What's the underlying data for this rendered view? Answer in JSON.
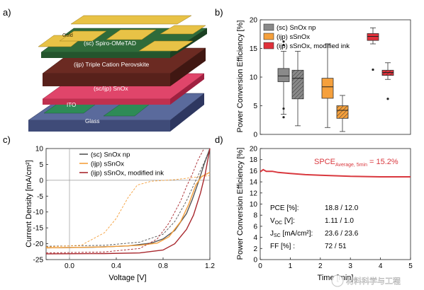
{
  "panel_a": {
    "label": "a)",
    "layers": {
      "gold": "Gold",
      "htl": "(sc) Spiro-OMeTAD",
      "perovskite": "(ijp) Triple Cation Perovskite",
      "etl": "(sc/ijp) SnOx",
      "ito": "ITO",
      "glass": "Glass"
    },
    "colors": {
      "gold": "#e8c246",
      "htl": "#2f6b3a",
      "perovskite": "#6b2a22",
      "etl": "#e0456a",
      "ito": "#2e8b57",
      "glass": "#5a6a9c"
    }
  },
  "panel_b": {
    "label": "b)"
  },
  "panel_c": {
    "label": "c)"
  },
  "panel_d": {
    "label": "d)",
    "annotation": "SPCE",
    "annotation_sub": "Average, 5min",
    "annotation_value": " = 15.2%",
    "params": [
      {
        "label": "PCE [%]:",
        "value": "18.8 / 12.0"
      },
      {
        "label": "V",
        "sub": "OC",
        "unit": " [V]:",
        "value": "1.11 / 1.0"
      },
      {
        "label": "J",
        "sub": "SC",
        "unit": " [mA/cm²]:",
        "value": "23.6 / 23.6"
      },
      {
        "label": "FF [%]  :",
        "value": "72 / 51"
      }
    ]
  },
  "watermark": "材料科学与工程",
  "chart_data": [
    {
      "type": "box",
      "ylabel": "Power Conversion Efficiency [%]",
      "ylim": [
        0,
        20
      ],
      "yticks": [
        0,
        5,
        10,
        15,
        20
      ],
      "legend": [
        {
          "name": "(sc) SnOx np",
          "color": "#8a8a8a"
        },
        {
          "name": "(ijp) sSnOx",
          "color": "#f5a03c"
        },
        {
          "name": "(ijp) sSnOx, modified ink",
          "color": "#e0303a"
        }
      ],
      "boxes": [
        {
          "color": "#8a8a8a",
          "hatched": false,
          "min": 3.5,
          "q1": 9.2,
          "median": 10.2,
          "q3": 11.5,
          "max": 14.5,
          "outliers": [
            16.2,
            15.6,
            4.5,
            3.0
          ]
        },
        {
          "color": "#8a8a8a",
          "hatched": true,
          "min": 1.5,
          "q1": 6.2,
          "median": 9.8,
          "q3": 11.2,
          "max": 14.5,
          "outliers": []
        },
        {
          "color": "#f5a03c",
          "hatched": false,
          "min": 1.2,
          "q1": 6.3,
          "median": 8.3,
          "q3": 9.8,
          "max": 15.8,
          "outliers": []
        },
        {
          "color": "#f5a03c",
          "hatched": true,
          "min": 0.5,
          "q1": 2.8,
          "median": 4.2,
          "q3": 5.0,
          "max": 6.8,
          "outliers": []
        },
        {
          "color": "#e0303a",
          "hatched": false,
          "min": 15.8,
          "q1": 16.4,
          "median": 17.1,
          "q3": 17.6,
          "max": 18.6,
          "outliers": [
            11.3
          ]
        },
        {
          "color": "#e0303a",
          "hatched": true,
          "min": 9.6,
          "q1": 10.3,
          "median": 10.8,
          "q3": 11.2,
          "max": 12.5,
          "outliers": [
            6.2
          ]
        }
      ]
    },
    {
      "type": "line",
      "xlabel": "Voltage [V]",
      "ylabel": "Current Density [mA/cm²]",
      "xlim": [
        -0.2,
        1.2
      ],
      "ylim": [
        -25,
        10
      ],
      "xticks": [
        0.0,
        0.4,
        0.8,
        1.2
      ],
      "yticks": [
        -25,
        -20,
        -15,
        -10,
        -5,
        0,
        5,
        10
      ],
      "legend": [
        {
          "name": "(sc) SnOx np",
          "color": "#555555"
        },
        {
          "name": "(ijp) sSnOx",
          "color": "#f5a03c"
        },
        {
          "name": "(ijp) sSnOx, modified ink",
          "color": "#a8282e"
        }
      ],
      "series": [
        {
          "color": "#555555",
          "dashed": false,
          "points": [
            [
              -0.2,
              -21.3
            ],
            [
              0.2,
              -21.1
            ],
            [
              0.5,
              -20.7
            ],
            [
              0.7,
              -19.8
            ],
            [
              0.8,
              -18.5
            ],
            [
              0.9,
              -15.8
            ],
            [
              1.0,
              -10.5
            ],
            [
              1.05,
              -6.0
            ],
            [
              1.1,
              -0.8
            ],
            [
              1.15,
              5.0
            ],
            [
              1.2,
              11.0
            ]
          ]
        },
        {
          "color": "#555555",
          "dashed": true,
          "points": [
            [
              -0.2,
              -20.8
            ],
            [
              0.3,
              -20.5
            ],
            [
              0.6,
              -19.5
            ],
            [
              0.8,
              -17.0
            ],
            [
              0.9,
              -13.0
            ],
            [
              1.0,
              -6.5
            ],
            [
              1.08,
              0.0
            ],
            [
              1.15,
              5.5
            ],
            [
              1.2,
              10.0
            ]
          ]
        },
        {
          "color": "#f5a03c",
          "dashed": false,
          "points": [
            [
              -0.2,
              -21.3
            ],
            [
              0.3,
              -21.0
            ],
            [
              0.6,
              -20.5
            ],
            [
              0.75,
              -19.8
            ],
            [
              0.85,
              -17.8
            ],
            [
              0.95,
              -13.0
            ],
            [
              1.02,
              -7.5
            ],
            [
              1.08,
              -1.5
            ],
            [
              1.13,
              1.2
            ],
            [
              1.2,
              2.5
            ]
          ]
        },
        {
          "color": "#f5a03c",
          "dashed": true,
          "points": [
            [
              -0.2,
              -21.0
            ],
            [
              0.1,
              -20.5
            ],
            [
              0.3,
              -16.5
            ],
            [
              0.4,
              -12.0
            ],
            [
              0.5,
              -5.5
            ],
            [
              0.58,
              -1.5
            ],
            [
              0.7,
              -0.3
            ],
            [
              0.9,
              0.2
            ],
            [
              1.2,
              1.5
            ]
          ]
        },
        {
          "color": "#a8282e",
          "dashed": false,
          "points": [
            [
              -0.2,
              -23.2
            ],
            [
              0.3,
              -23.1
            ],
            [
              0.6,
              -22.9
            ],
            [
              0.8,
              -22.0
            ],
            [
              0.9,
              -20.0
            ],
            [
              1.0,
              -15.5
            ],
            [
              1.06,
              -11.0
            ],
            [
              1.12,
              -4.0
            ],
            [
              1.16,
              2.0
            ],
            [
              1.2,
              10.0
            ]
          ]
        },
        {
          "color": "#a8282e",
          "dashed": true,
          "points": [
            [
              -0.2,
              -22.9
            ],
            [
              0.3,
              -22.6
            ],
            [
              0.6,
              -21.5
            ],
            [
              0.75,
              -18.5
            ],
            [
              0.85,
              -13.5
            ],
            [
              0.95,
              -6.5
            ],
            [
              1.0,
              -2.0
            ],
            [
              1.05,
              2.0
            ],
            [
              1.1,
              6.5
            ],
            [
              1.15,
              10.0
            ]
          ]
        }
      ]
    },
    {
      "type": "line",
      "xlabel": "Time [min]",
      "ylabel": "Power Conversion Efficiency [%]",
      "xlim": [
        0,
        5
      ],
      "ylim": [
        0,
        20
      ],
      "xticks": [
        0,
        1,
        2,
        3,
        4,
        5
      ],
      "yticks": [
        0,
        2,
        4,
        6,
        8,
        10,
        12,
        14,
        16,
        18,
        20
      ],
      "series": [
        {
          "color": "#d9383e",
          "dashed": false,
          "points": [
            [
              0,
              15.8
            ],
            [
              0.1,
              16.2
            ],
            [
              0.2,
              15.9
            ],
            [
              0.4,
              15.9
            ],
            [
              0.6,
              15.7
            ],
            [
              0.8,
              15.6
            ],
            [
              1.0,
              15.5
            ],
            [
              1.5,
              15.3
            ],
            [
              2.0,
              15.2
            ],
            [
              2.5,
              15.1
            ],
            [
              3.0,
              15.0
            ],
            [
              3.5,
              14.95
            ],
            [
              4.0,
              14.9
            ],
            [
              4.5,
              14.9
            ],
            [
              5.0,
              14.9
            ]
          ]
        }
      ]
    }
  ]
}
